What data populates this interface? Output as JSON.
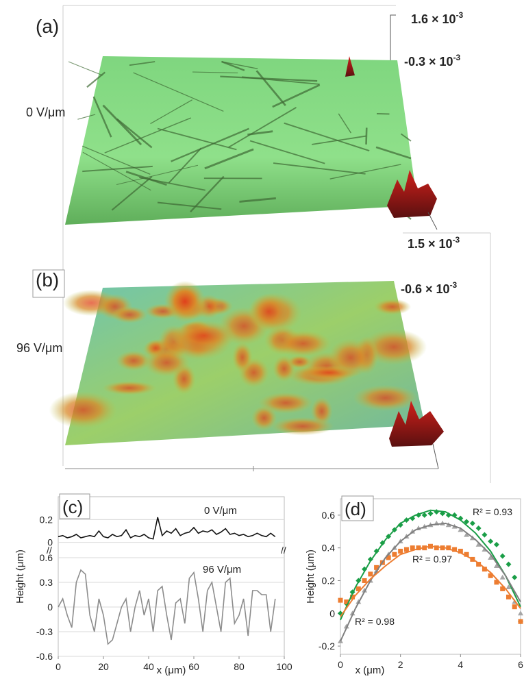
{
  "panels": [
    {
      "label": "(a)",
      "field": "0 V/μm",
      "scale_top": {
        "base": "1.6 × 10",
        "exponent": "-3"
      },
      "scale_bottom": {
        "base": "-0.3 × 10",
        "exponent": "-3"
      }
    },
    {
      "label": "(b)",
      "field": "96 V/μm",
      "scale_top": {
        "base": "1.5 × 10",
        "exponent": "-3"
      },
      "scale_bottom": {
        "base": "-0.6 × 10",
        "exponent": "-3"
      }
    }
  ],
  "chart_data": [
    {
      "type": "line",
      "label": "(c)",
      "xlabel": "x (μm)",
      "ylabel": "Height (μm)",
      "x": [
        0,
        2,
        4,
        6,
        8,
        10,
        12,
        14,
        16,
        18,
        20,
        22,
        24,
        26,
        28,
        30,
        32,
        34,
        36,
        38,
        40,
        42,
        44,
        46,
        48,
        50,
        52,
        54,
        56,
        58,
        60,
        62,
        64,
        66,
        68,
        70,
        72,
        74,
        76,
        78,
        80,
        82,
        84,
        86,
        88,
        90,
        92,
        94,
        96
      ],
      "series": [
        {
          "name": "0 V/μm",
          "color": "#111111",
          "axis": "y2",
          "values": [
            0.05,
            0.06,
            0.04,
            0.05,
            0.07,
            0.04,
            0.05,
            0.06,
            0.05,
            0.1,
            0.05,
            0.04,
            0.07,
            0.05,
            0.06,
            0.11,
            0.04,
            0.06,
            0.05,
            0.07,
            0.04,
            0.03,
            0.22,
            0.06,
            0.1,
            0.08,
            0.12,
            0.06,
            0.08,
            0.09,
            0.13,
            0.08,
            0.1,
            0.09,
            0.11,
            0.07,
            0.09,
            0.12,
            0.07,
            0.08,
            0.06,
            0.07,
            0.05,
            0.06,
            0.08,
            0.06,
            0.05,
            0.08,
            0.05
          ]
        },
        {
          "name": "96 V/μm",
          "color": "#8c8c8c",
          "values": [
            0.0,
            0.1,
            -0.1,
            -0.25,
            0.3,
            0.45,
            0.4,
            -0.1,
            -0.3,
            0.1,
            -0.1,
            -0.45,
            -0.4,
            -0.2,
            0.0,
            0.1,
            -0.3,
            0.0,
            0.2,
            -0.1,
            0.1,
            -0.3,
            0.2,
            0.25,
            -0.1,
            -0.4,
            0.05,
            0.1,
            -0.2,
            0.35,
            0.42,
            0.1,
            -0.3,
            0.2,
            0.3,
            0.0,
            -0.3,
            0.3,
            0.35,
            -0.2,
            -0.1,
            0.1,
            -0.35,
            0.2,
            0.2,
            0.15,
            0.15,
            -0.3,
            0.1
          ]
        }
      ],
      "xlim": [
        0,
        100
      ],
      "xticks": [
        0,
        20,
        40,
        60,
        80,
        100
      ],
      "ylim": [
        -0.6,
        0.65
      ],
      "yticks": [
        -0.6,
        -0.3,
        0,
        0.3,
        0.6
      ],
      "y2lim": [
        -0.05,
        0.4
      ],
      "y2ticks": [
        0,
        0.2
      ]
    },
    {
      "type": "scatter",
      "label": "(d)",
      "xlabel": "x (μm)",
      "ylabel": "Height (μm)",
      "x": [
        0,
        0.2,
        0.4,
        0.6,
        0.8,
        1,
        1.2,
        1.4,
        1.6,
        1.8,
        2,
        2.2,
        2.4,
        2.6,
        2.8,
        3,
        3.2,
        3.4,
        3.6,
        3.8,
        4,
        4.2,
        4.4,
        4.6,
        4.8,
        5,
        5.2,
        5.4,
        5.6,
        5.8,
        6
      ],
      "series": [
        {
          "color": "#1a9e47",
          "marker": "diamond",
          "values": [
            0.0,
            0.06,
            0.13,
            0.2,
            0.27,
            0.33,
            0.38,
            0.43,
            0.47,
            0.51,
            0.54,
            0.57,
            0.58,
            0.6,
            0.6,
            0.61,
            0.62,
            0.61,
            0.6,
            0.6,
            0.58,
            0.56,
            0.55,
            0.52,
            0.48,
            0.44,
            0.42,
            0.35,
            0.3,
            0.22,
            -0.05
          ]
        },
        {
          "color": "#a6a6a6",
          "marker": "triangle",
          "values": [
            -0.17,
            -0.08,
            0.0,
            0.07,
            0.14,
            0.2,
            0.26,
            0.31,
            0.36,
            0.4,
            0.44,
            0.47,
            0.5,
            0.52,
            0.53,
            0.54,
            0.55,
            0.55,
            0.54,
            0.53,
            0.51,
            0.48,
            0.46,
            0.42,
            0.39,
            0.34,
            0.29,
            0.22,
            0.16,
            0.07,
            0.0
          ]
        },
        {
          "color": "#ed7d31",
          "marker": "square",
          "values": [
            0.08,
            0.07,
            0.1,
            0.15,
            0.2,
            0.24,
            0.28,
            0.31,
            0.34,
            0.36,
            0.38,
            0.39,
            0.4,
            0.4,
            0.4,
            0.41,
            0.4,
            0.4,
            0.4,
            0.39,
            0.38,
            0.36,
            0.33,
            0.3,
            0.27,
            0.23,
            0.19,
            0.15,
            0.1,
            0.04,
            -0.05
          ]
        }
      ],
      "fit_x": [
        0,
        0.5,
        1,
        1.5,
        2,
        2.5,
        3,
        3.5,
        4,
        4.5,
        5,
        5.5,
        6
      ],
      "fits": [
        {
          "color": "#1a9e47",
          "values": [
            -0.04,
            0.16,
            0.32,
            0.45,
            0.55,
            0.6,
            0.63,
            0.62,
            0.57,
            0.49,
            0.38,
            0.23,
            0.04
          ]
        },
        {
          "color": "#7f7f7f",
          "values": [
            -0.17,
            0.03,
            0.2,
            0.34,
            0.44,
            0.51,
            0.54,
            0.55,
            0.52,
            0.45,
            0.36,
            0.23,
            0.07
          ]
        },
        {
          "color": "#ed7d31",
          "values": [
            -0.02,
            0.11,
            0.21,
            0.29,
            0.36,
            0.39,
            0.41,
            0.4,
            0.37,
            0.32,
            0.25,
            0.15,
            0.03
          ]
        }
      ],
      "annotations": [
        "R² = 0.93",
        "R² = 0.97",
        "R² = 0.98"
      ],
      "xlim": [
        0,
        6
      ],
      "xticks": [
        0,
        2,
        4,
        6
      ],
      "ylim": [
        -0.25,
        0.7
      ],
      "yticks": [
        -0.2,
        0,
        0.2,
        0.4,
        0.6
      ]
    }
  ]
}
